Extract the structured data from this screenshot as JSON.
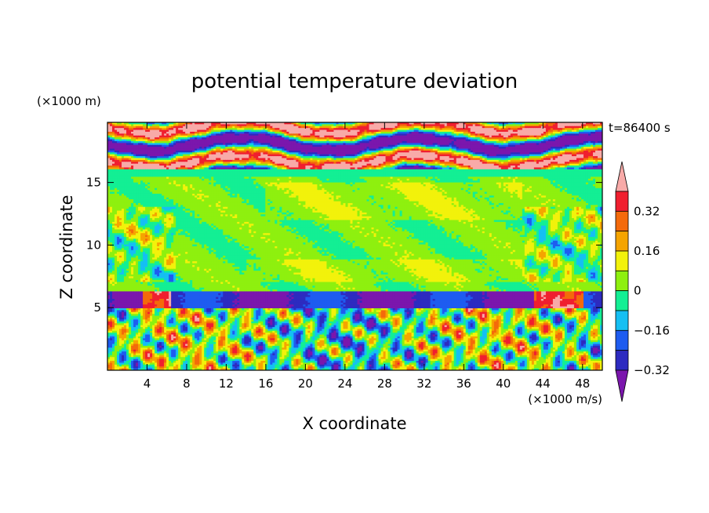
{
  "chart_data": {
    "type": "heatmap",
    "title": "potential temperature deviation",
    "xlabel": "X coordinate",
    "ylabel": "Z coordinate",
    "x_unit": "(×1000 m/s)",
    "y_unit": "(×1000 m)",
    "time_label": "t=86400 s",
    "xlim": [
      0,
      50
    ],
    "ylim": [
      0,
      19.8
    ],
    "x_ticks": [
      4,
      8,
      12,
      16,
      20,
      24,
      28,
      32,
      36,
      40,
      44,
      48
    ],
    "y_ticks": [
      5,
      10,
      15
    ],
    "colorbar": {
      "levels": [
        -0.4,
        -0.32,
        -0.24,
        -0.16,
        -0.08,
        0,
        0.08,
        0.16,
        0.24,
        0.32,
        0.4
      ],
      "colors": [
        "#7b16ad",
        "#2d2bc0",
        "#1e5cf0",
        "#15bff3",
        "#13ef94",
        "#8ef00f",
        "#f2f20b",
        "#f5a400",
        "#f46a0b",
        "#f01f2f",
        "#f8aaa8"
      ],
      "tick_labels": [
        "0.32",
        "0.16",
        "0",
        "−0.16",
        "−0.32"
      ],
      "tick_values": [
        0.32,
        0.16,
        0,
        -0.16,
        -0.32
      ]
    }
  }
}
